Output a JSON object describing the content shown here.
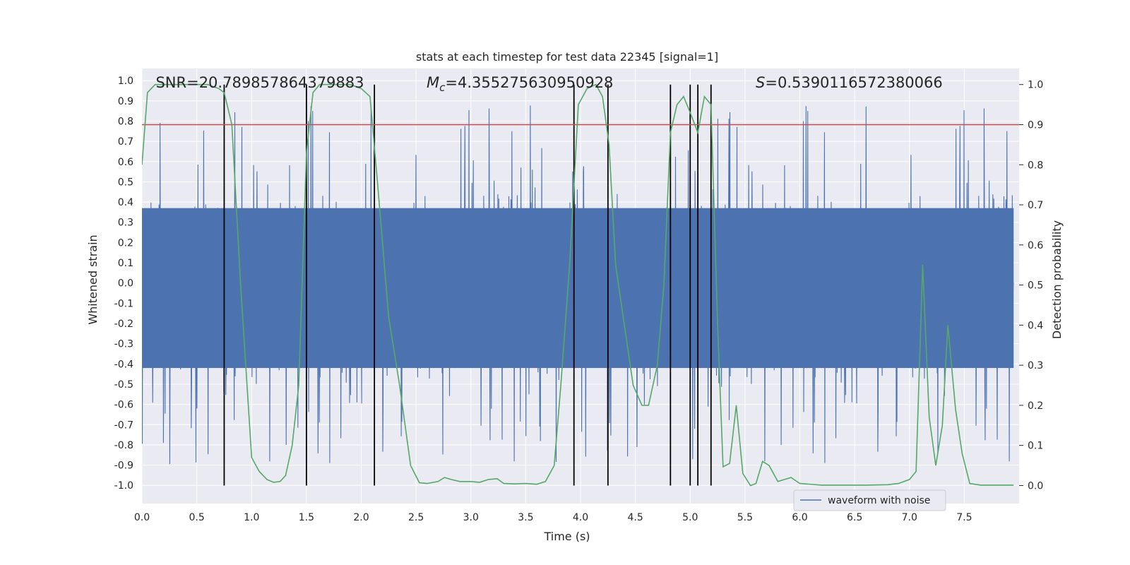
{
  "chart_data": {
    "type": "line",
    "title": "stats at each timestep for test data 22345 [signal=1]",
    "xlabel": "Time (s)",
    "ylabel_left": "Whitened strain",
    "ylabel_right": "Detection probability",
    "xlim": [
      0.0,
      8.0
    ],
    "ylim_left": [
      -1.09,
      1.06
    ],
    "ylim_right": [
      -0.045,
      1.04
    ],
    "x_ticks": [
      "0.0",
      "0.5",
      "1.0",
      "1.5",
      "2.0",
      "2.5",
      "3.0",
      "3.5",
      "4.0",
      "4.5",
      "5.0",
      "5.5",
      "6.0",
      "6.5",
      "7.0",
      "7.5"
    ],
    "x_tick_values": [
      0,
      0.5,
      1,
      1.5,
      2,
      2.5,
      3,
      3.5,
      4,
      4.5,
      5,
      5.5,
      6,
      6.5,
      7,
      7.5
    ],
    "y_left_ticks": [
      "1.0",
      "0.9",
      "0.8",
      "0.7",
      "0.6",
      "0.5",
      "0.4",
      "0.3",
      "0.2",
      "0.1",
      "0.0",
      "-0.1",
      "-0.2",
      "-0.3",
      "-0.4",
      "-0.5",
      "-0.6",
      "-0.7",
      "-0.8",
      "-0.9",
      "-1.0"
    ],
    "y_left_tick_values": [
      1.0,
      0.9,
      0.8,
      0.7,
      0.6,
      0.5,
      0.4,
      0.3,
      0.2,
      0.1,
      0.0,
      -0.1,
      -0.2,
      -0.3,
      -0.4,
      -0.5,
      -0.6,
      -0.7,
      -0.8,
      -0.9,
      -1.0
    ],
    "y_right_ticks": [
      "1.0",
      "0.9",
      "0.8",
      "0.7",
      "0.6",
      "0.5",
      "0.4",
      "0.3",
      "0.2",
      "0.1",
      "0.0"
    ],
    "y_right_tick_values": [
      1.0,
      0.9,
      0.8,
      0.7,
      0.6,
      0.5,
      0.4,
      0.3,
      0.2,
      0.1,
      0.0
    ],
    "annotations": {
      "snr": "SNR=20.789857864379883",
      "mc_symbol": "M",
      "mc_sub": "c",
      "mc_value": "=4.355275630950928",
      "s_symbol": "S",
      "s_value": "=0.5390116572380066"
    },
    "threshold": {
      "value": 0.9,
      "axis": "right",
      "color": "#c44e52"
    },
    "vertical_lines": [
      0.75,
      1.5,
      2.12,
      3.94,
      4.25,
      4.82,
      5.0,
      5.07,
      5.19
    ],
    "series": [
      {
        "name": "waveform with noise",
        "axis": "left",
        "color": "#4c72b0",
        "description": "dense noisy whitened strain, core band approx -0.42 to 0.38, spikes to about +/-1.0"
      },
      {
        "name": "detection probability",
        "axis": "right",
        "color": "#55a868",
        "x": [
          0.0,
          0.05,
          0.12,
          0.2,
          0.3,
          0.4,
          0.5,
          0.6,
          0.7,
          0.75,
          0.82,
          0.9,
          1.0,
          1.07,
          1.14,
          1.2,
          1.26,
          1.31,
          1.37,
          1.43,
          1.5,
          1.56,
          1.62,
          1.7,
          1.8,
          1.9,
          2.0,
          2.08,
          2.15,
          2.25,
          2.35,
          2.45,
          2.53,
          2.6,
          2.7,
          2.76,
          2.82,
          2.9,
          3.0,
          3.08,
          3.16,
          3.24,
          3.3,
          3.4,
          3.5,
          3.6,
          3.68,
          3.76,
          3.82,
          3.9,
          3.98,
          4.06,
          4.14,
          4.2,
          4.26,
          4.32,
          4.4,
          4.48,
          4.56,
          4.62,
          4.7,
          4.76,
          4.82,
          4.88,
          4.94,
          5.0,
          5.07,
          5.13,
          5.19,
          5.25,
          5.3,
          5.36,
          5.42,
          5.48,
          5.55,
          5.6,
          5.66,
          5.72,
          5.8,
          5.86,
          5.92,
          6.0,
          6.2,
          6.4,
          6.6,
          6.8,
          6.9,
          7.0,
          7.06,
          7.12,
          7.18,
          7.24,
          7.3,
          7.35,
          7.42,
          7.48,
          7.55,
          7.65,
          7.8,
          7.95
        ],
        "values": [
          0.8,
          0.98,
          1.0,
          1.0,
          1.0,
          1.0,
          1.0,
          1.0,
          0.99,
          0.98,
          0.9,
          0.5,
          0.07,
          0.035,
          0.015,
          0.008,
          0.01,
          0.025,
          0.1,
          0.25,
          0.83,
          0.98,
          1.0,
          1.0,
          1.0,
          1.0,
          0.99,
          0.97,
          0.75,
          0.42,
          0.25,
          0.05,
          0.007,
          0.005,
          0.01,
          0.02,
          0.015,
          0.01,
          0.01,
          0.008,
          0.015,
          0.017,
          0.005,
          0.004,
          0.005,
          0.003,
          0.01,
          0.05,
          0.25,
          0.55,
          0.95,
          0.99,
          1.0,
          0.97,
          0.85,
          0.55,
          0.4,
          0.25,
          0.2,
          0.2,
          0.3,
          0.5,
          0.88,
          0.95,
          0.97,
          0.93,
          0.88,
          0.97,
          0.95,
          0.4,
          0.047,
          0.055,
          0.2,
          0.03,
          0.0,
          0.005,
          0.06,
          0.05,
          0.01,
          0.015,
          0.02,
          0.005,
          0.001,
          0.001,
          0.001,
          0.002,
          0.005,
          0.015,
          0.035,
          0.55,
          0.17,
          0.05,
          0.15,
          0.4,
          0.19,
          0.08,
          0.005,
          0.001,
          0.001,
          0.001
        ]
      }
    ],
    "legend": {
      "position": "bottom-right",
      "entries": [
        "waveform with noise"
      ]
    }
  }
}
